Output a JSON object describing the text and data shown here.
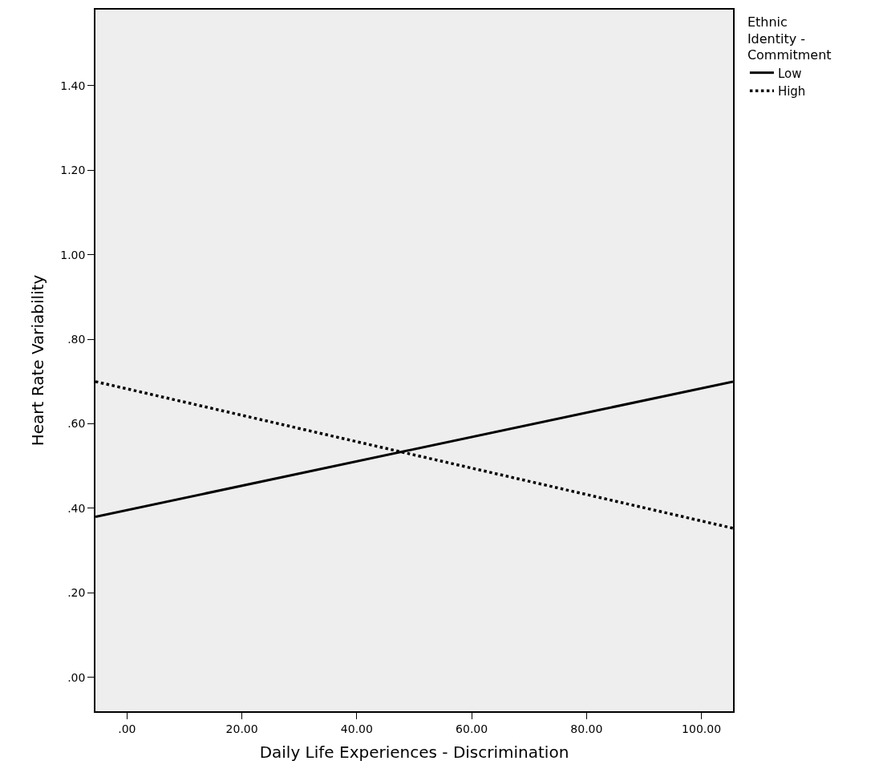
{
  "chart_data": {
    "type": "line",
    "xlabel": "Daily Life Experiences - Discrimination",
    "ylabel": "Heart Rate Variability",
    "legend_title": "Ethnic Identity - Commitment",
    "x": [
      -5.5,
      105.5
    ],
    "series": [
      {
        "name": "Low",
        "color": "#000000",
        "values": [
          0.38,
          0.7
        ],
        "line_style": "solid"
      },
      {
        "name": "High",
        "color": "#000000",
        "values": [
          0.7,
          0.353
        ],
        "line_style": "dotted"
      }
    ],
    "xlim": [
      -5.5,
      105.5
    ],
    "ylim": [
      -0.08,
      1.58
    ],
    "xticks": [
      {
        "value": 0,
        "label": ".00"
      },
      {
        "value": 20,
        "label": "20.00"
      },
      {
        "value": 40,
        "label": "40.00"
      },
      {
        "value": 60,
        "label": "60.00"
      },
      {
        "value": 80,
        "label": "80.00"
      },
      {
        "value": 100,
        "label": "100.00"
      }
    ],
    "yticks": [
      {
        "value": 0,
        "label": ".00"
      },
      {
        "value": 0.2,
        "label": ".20"
      },
      {
        "value": 0.4,
        "label": ".40"
      },
      {
        "value": 0.6,
        "label": ".60"
      },
      {
        "value": 0.8,
        "label": ".80"
      },
      {
        "value": 1.0,
        "label": "1.00"
      },
      {
        "value": 1.2,
        "label": "1.20"
      },
      {
        "value": 1.4,
        "label": "1.40"
      }
    ],
    "grid": false,
    "legend": "top right",
    "marker": "none"
  }
}
